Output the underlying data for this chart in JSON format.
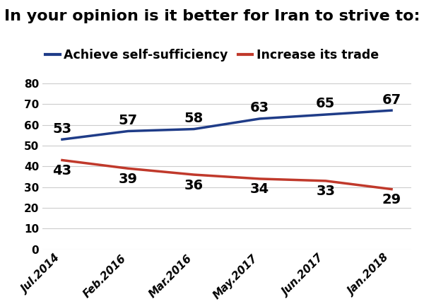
{
  "title": "In your opinion is it better for Iran to strive to:",
  "categories": [
    "Jul.2014",
    "Feb.2016",
    "Mar.2016",
    "May.2017",
    "Jun.2017",
    "Jan.2018"
  ],
  "series": [
    {
      "label": "Achieve self-sufficiency",
      "values": [
        53,
        57,
        58,
        63,
        65,
        67
      ],
      "color": "#1f3c88",
      "linewidth": 2.5
    },
    {
      "label": "Increase its trade",
      "values": [
        43,
        39,
        36,
        34,
        33,
        29
      ],
      "color": "#c0392b",
      "linewidth": 2.5
    }
  ],
  "ylim": [
    0,
    88
  ],
  "yticks": [
    0,
    10,
    20,
    30,
    40,
    50,
    60,
    70,
    80
  ],
  "title_fontsize": 16,
  "legend_fontsize": 12.5,
  "tick_fontsize": 11,
  "annotation_fontsize": 14,
  "background_color": "#ffffff",
  "grid_color": "#cccccc"
}
